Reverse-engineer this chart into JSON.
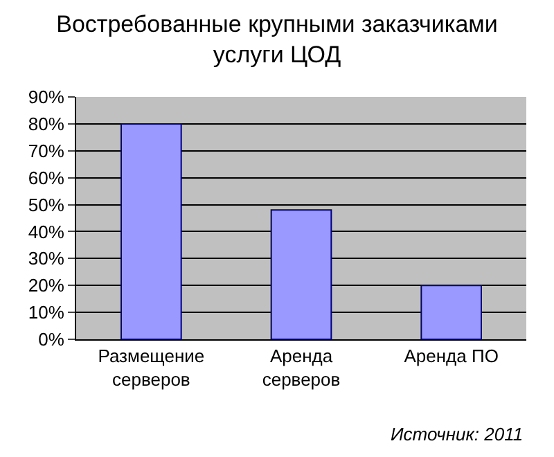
{
  "chart_data": {
    "type": "bar",
    "title": "Востребованные крупными заказчиками\nуслуги ЦОД",
    "categories": [
      "Размещение\nсерверов",
      "Аренда\nсерверов",
      "Аренда ПО"
    ],
    "values": [
      80,
      48,
      20
    ],
    "color": "#9999ff",
    "ylim": [
      0,
      90
    ],
    "yticks": [
      {
        "value": 0,
        "label": "0%"
      },
      {
        "value": 10,
        "label": "10%"
      },
      {
        "value": 20,
        "label": "20%"
      },
      {
        "value": 30,
        "label": "30%"
      },
      {
        "value": 40,
        "label": "40%"
      },
      {
        "value": 50,
        "label": "50%"
      },
      {
        "value": 60,
        "label": "60%"
      },
      {
        "value": 70,
        "label": "70%"
      },
      {
        "value": 80,
        "label": "80%"
      },
      {
        "value": 90,
        "label": "90%"
      }
    ],
    "grid": "y",
    "annotations": [
      "Источник: 2011"
    ]
  }
}
